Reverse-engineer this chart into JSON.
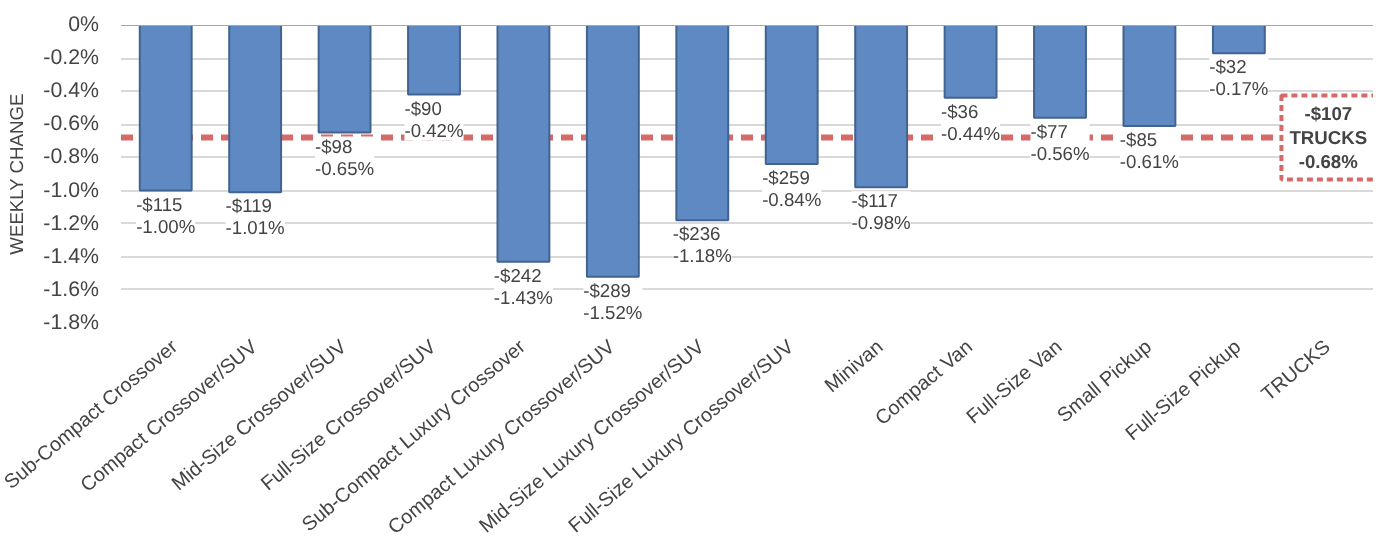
{
  "chart_data": {
    "type": "bar",
    "ylabel": "WEEKLY CHANGE",
    "categories": [
      "Sub-Compact Crossover",
      "Compact Crossover/SUV",
      "Mid-Size Crossover/SUV",
      "Full-Size Crossover/SUV",
      "Sub-Compact Luxury Crossover",
      "Compact Luxury Crossover/SUV",
      "Mid-Size Luxury Crossover/SUV",
      "Full-Size Luxury Crossover/SUV",
      "Minivan",
      "Compact Van",
      "Full-Size Van",
      "Small Pickup",
      "Full-Size Pickup",
      "TRUCKS"
    ],
    "values": [
      -1.0,
      -1.01,
      -0.65,
      -0.42,
      -1.43,
      -1.52,
      -1.18,
      -0.84,
      -0.98,
      -0.44,
      -0.56,
      -0.61,
      -0.17,
      null
    ],
    "value_labels": [
      "-$115\n-1.00%",
      "-$119\n-1.01%",
      "-$98\n-0.65%",
      "-$90\n-0.42%",
      "-$242\n-1.43%",
      "-$289\n-1.52%",
      "-$236\n-1.18%",
      "-$259\n-0.84%",
      "-$117\n-0.98%",
      "-$36\n-0.44%",
      "-$77\n-0.56%",
      "-$85\n-0.61%",
      "-$32\n-0.17%",
      null
    ],
    "color": "#5f89c2",
    "ylim": [
      -1.8,
      0
    ],
    "yticks": [
      {
        "value": 0,
        "label": "0%"
      },
      {
        "value": -0.2,
        "label": "-0.2%"
      },
      {
        "value": -0.4,
        "label": "-0.4%"
      },
      {
        "value": -0.6,
        "label": "-0.6%"
      },
      {
        "value": -0.8,
        "label": "-0.8%"
      },
      {
        "value": -1.0,
        "label": "-1.0%"
      },
      {
        "value": -1.2,
        "label": "-1.2%"
      },
      {
        "value": -1.4,
        "label": "-1.4%"
      },
      {
        "value": -1.6,
        "label": "-1.6%"
      },
      {
        "value": -1.8,
        "label": "-1.8%"
      }
    ],
    "grid": "y",
    "ref_lines": [
      {
        "axis": "y",
        "value": -0.68,
        "label": "-$107\nTRUCKS\n-0.68%",
        "color": "#d46a6a",
        "line_style": "dashed"
      }
    ]
  }
}
